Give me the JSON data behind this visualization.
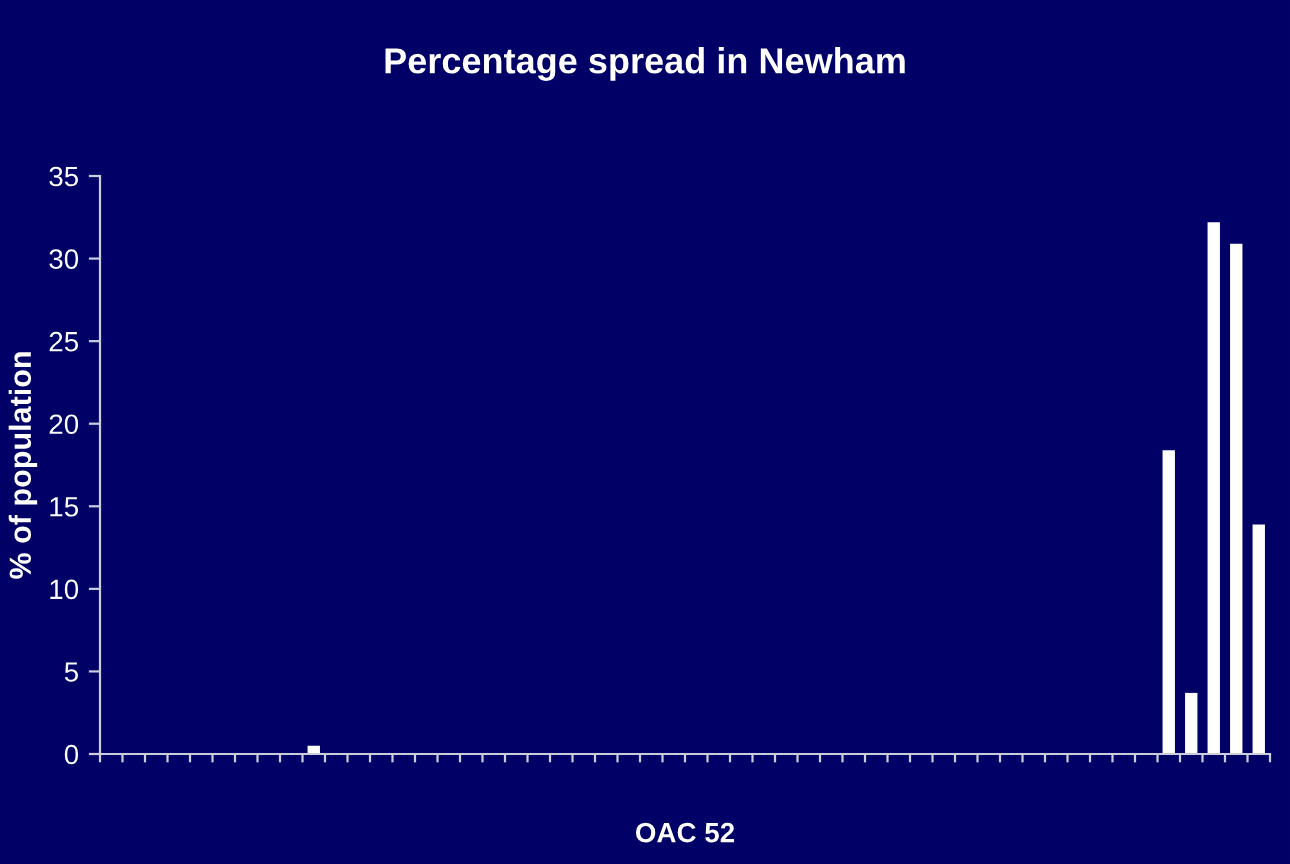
{
  "chart_data": {
    "type": "bar",
    "title": "Percentage spread in Newham",
    "xlabel": "OAC 52",
    "ylabel": "% of population",
    "categories": [
      null,
      null,
      null,
      null,
      null,
      null,
      null,
      null,
      null,
      null,
      null,
      null,
      null,
      null,
      null,
      null,
      null,
      null,
      null,
      null,
      null,
      null,
      null,
      null,
      null,
      null,
      null,
      null,
      null,
      null,
      null,
      null,
      null,
      null,
      null,
      null,
      null,
      null,
      null,
      null,
      null,
      null,
      null,
      null,
      null,
      null,
      null,
      null,
      null,
      null,
      null,
      null
    ],
    "values": [
      0,
      0,
      0,
      0,
      0,
      0,
      0,
      0,
      0,
      0.5,
      0,
      0,
      0,
      0,
      0,
      0,
      0,
      0,
      0,
      0,
      0,
      0,
      0,
      0,
      0,
      0,
      0,
      0,
      0,
      0,
      0,
      0,
      0,
      0,
      0,
      0,
      0,
      0,
      0,
      0,
      0,
      0,
      0,
      0,
      0,
      0,
      0,
      18.4,
      3.7,
      32.2,
      30.9,
      13.9
    ],
    "color": "#ffffff",
    "ylim": [
      0,
      35
    ],
    "yticks": [
      0,
      5,
      10,
      15,
      20,
      25,
      30,
      35
    ],
    "grid": false,
    "legend": false
  }
}
